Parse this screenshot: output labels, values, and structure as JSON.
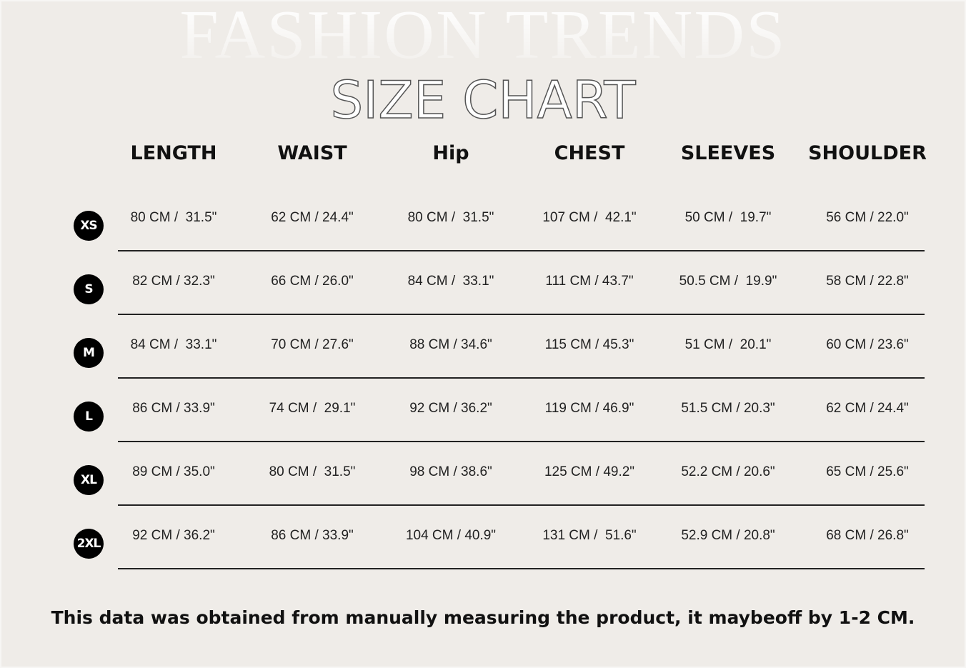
{
  "background_title": "FASHION TRENDS",
  "title": "SIZE CHART",
  "columns": [
    "LENGTH",
    "WAIST",
    "Hip",
    "CHEST",
    "SLEEVES",
    "SHOULDER"
  ],
  "rows": [
    {
      "size": "XS",
      "values": [
        "80 CM /  31.5\"",
        "62 CM / 24.4\"",
        "80 CM /  31.5\"",
        "107 CM /  42.1\"",
        "50 CM /  19.7\"",
        "56 CM / 22.0\""
      ]
    },
    {
      "size": "S",
      "values": [
        "82 CM / 32.3\"",
        "66 CM / 26.0\"",
        "84 CM /  33.1\"",
        "111 CM / 43.7\"",
        "50.5 CM /  19.9\"",
        "58 CM / 22.8\""
      ]
    },
    {
      "size": "M",
      "values": [
        "84 CM /  33.1\"",
        "70 CM / 27.6\"",
        "88 CM / 34.6\"",
        "115 CM / 45.3\"",
        "51 CM /  20.1\"",
        "60 CM / 23.6\""
      ]
    },
    {
      "size": "L",
      "values": [
        "86 CM / 33.9\"",
        "74 CM /  29.1\"",
        "92 CM / 36.2\"",
        "119 CM / 46.9\"",
        "51.5 CM / 20.3\"",
        "62 CM / 24.4\""
      ]
    },
    {
      "size": "XL",
      "values": [
        "89 CM / 35.0\"",
        "80 CM /  31.5\"",
        "98 CM / 38.6\"",
        "125 CM / 49.2\"",
        "52.2 CM / 20.6\"",
        "65 CM / 25.6\""
      ]
    },
    {
      "size": "2XL",
      "values": [
        "92 CM / 36.2\"",
        "86 CM / 33.9\"",
        "104 CM / 40.9\"",
        "131 CM /  51.6\"",
        "52.9 CM / 20.8\"",
        "68 CM / 26.8\""
      ]
    }
  ],
  "note": "This data was obtained from manually measuring the product, it maybeoff by 1-2 CM."
}
